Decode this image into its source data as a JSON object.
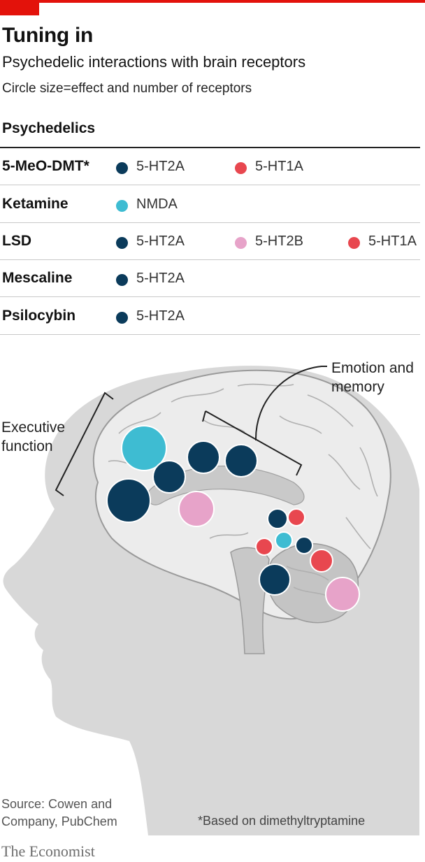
{
  "header": {
    "title": "Tuning in",
    "subtitle": "Psychedelic interactions with brain receptors",
    "note": "Circle size=effect and number of receptors"
  },
  "legend": {
    "column_header": "Psychedelics",
    "rows": [
      {
        "drug": "5-MeO-DMT*",
        "receptors": [
          "5-HT2A",
          "5-HT1A"
        ]
      },
      {
        "drug": "Ketamine",
        "receptors": [
          "NMDA"
        ]
      },
      {
        "drug": "LSD",
        "receptors": [
          "5-HT2A",
          "5-HT2B",
          "5-HT1A"
        ]
      },
      {
        "drug": "Mescaline",
        "receptors": [
          "5-HT2A"
        ]
      },
      {
        "drug": "Psilocybin",
        "receptors": [
          "5-HT2A"
        ]
      }
    ]
  },
  "colors": {
    "5-HT2A": "#0b3b5b",
    "5-HT1A": "#e8474f",
    "NMDA": "#3ebcd2",
    "5-HT2B": "#e7a3c9"
  },
  "chart_data": {
    "type": "bubble-diagram",
    "regions": [
      {
        "label": "Executive function",
        "receptors": [
          "NMDA",
          "5-HT2A",
          "5-HT2A",
          "5-HT2A",
          "5-HT2A",
          "5-HT2B"
        ]
      },
      {
        "label": "Emotion and memory",
        "receptors": [
          "5-HT2A",
          "5-HT1A",
          "NMDA",
          "5-HT1A",
          "5-HT2A",
          "5-HT1A",
          "5-HT2A",
          "5-HT2B"
        ]
      }
    ]
  },
  "annotations": {
    "executive_function": [
      "Executive",
      "function"
    ],
    "emotion_memory": [
      "Emotion and",
      "memory"
    ]
  },
  "footer": {
    "source": [
      "Source: Cowen and",
      "Company, PubChem"
    ],
    "footnote": "*Based on dimethyltryptamine",
    "brand": "The Economist"
  }
}
